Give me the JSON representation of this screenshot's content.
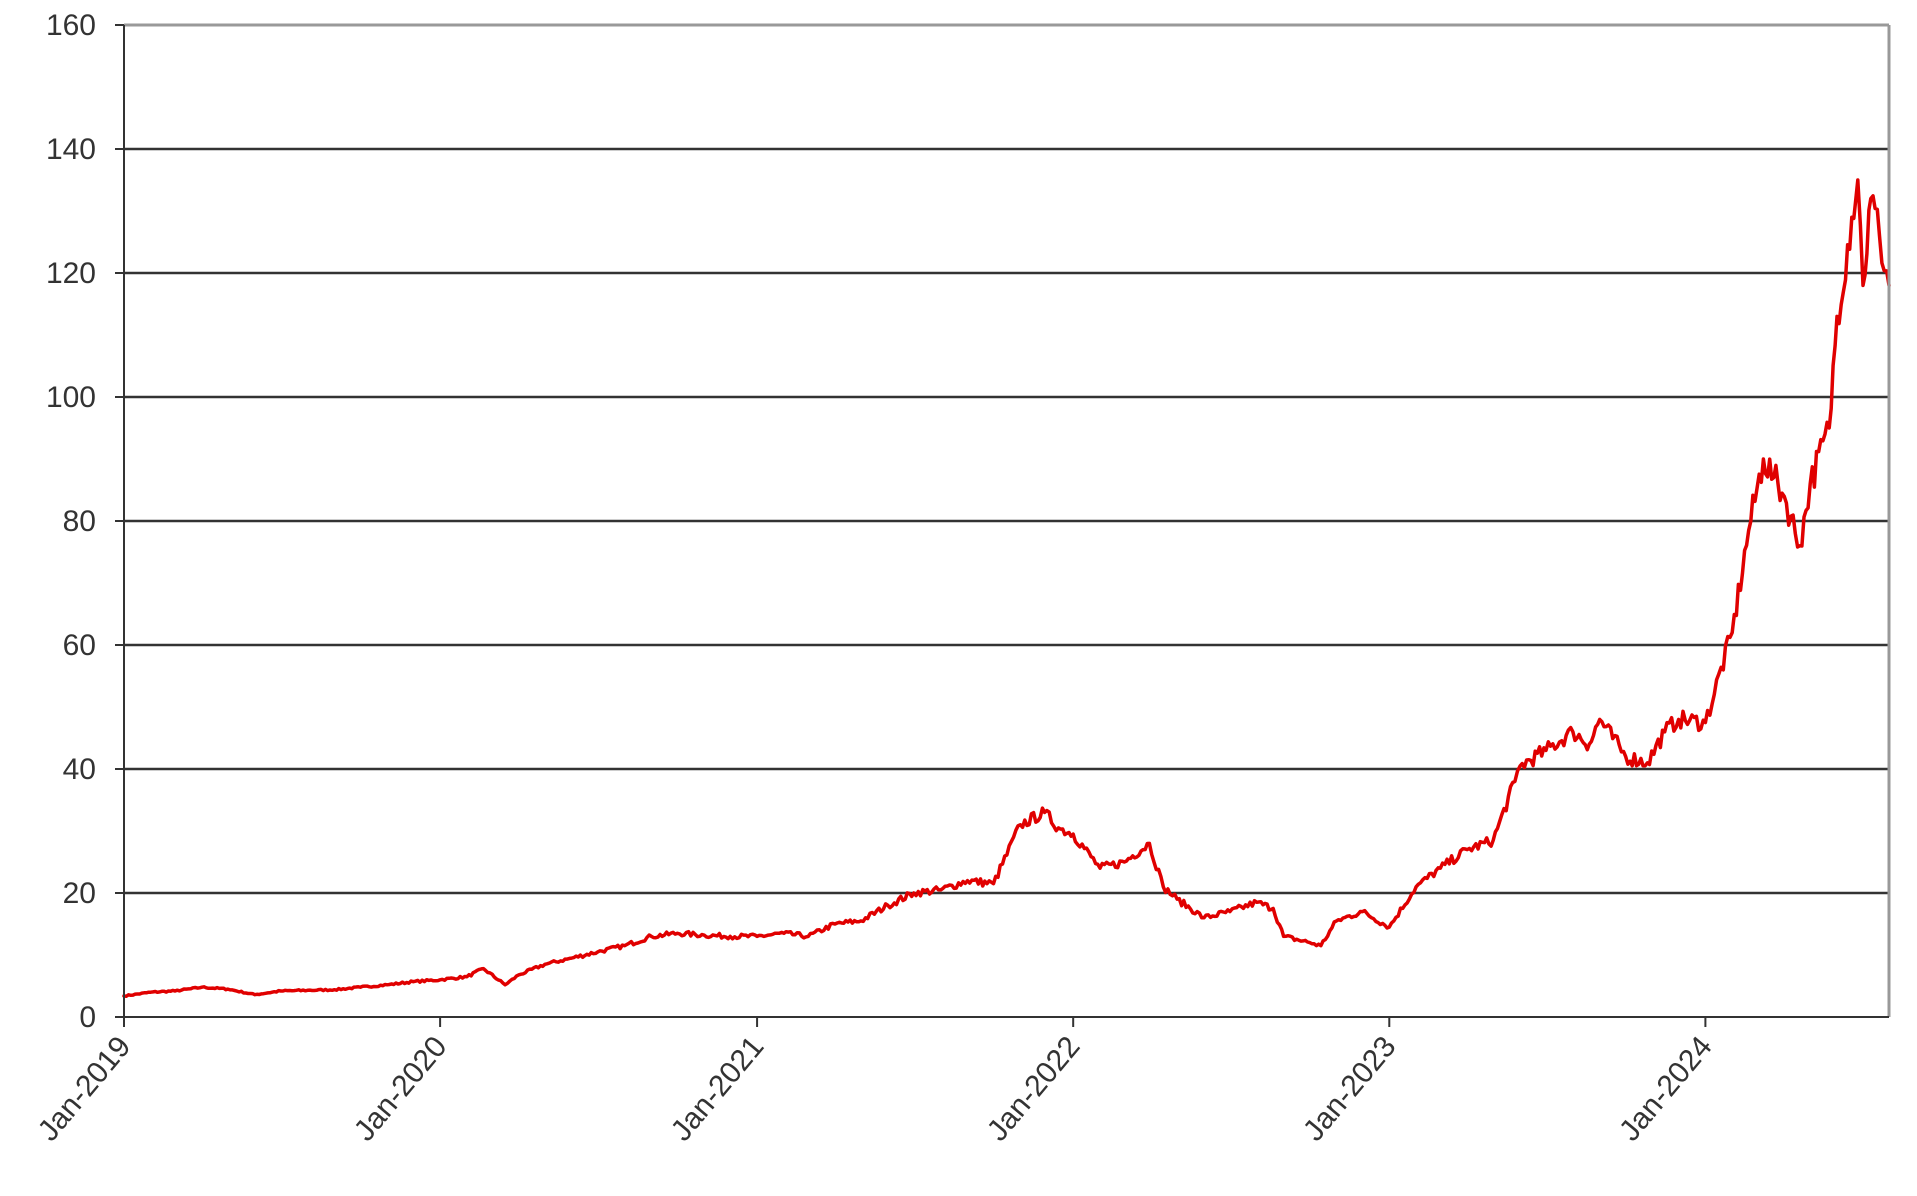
{
  "chart_data": {
    "type": "line",
    "title": "",
    "xlabel": "",
    "ylabel": "",
    "xlim": [
      "2019-01-01",
      "2024-07-31"
    ],
    "ylim": [
      0,
      160
    ],
    "yticks": [
      0,
      20,
      40,
      60,
      80,
      100,
      120,
      140,
      160
    ],
    "ytick_labels": [
      "0",
      "20",
      "40",
      "60",
      "80",
      "100",
      "120",
      "140",
      "160"
    ],
    "xticks": [
      "2019-01-01",
      "2020-01-01",
      "2021-01-01",
      "2022-01-01",
      "2023-01-01",
      "2024-01-01"
    ],
    "xtick_labels": [
      "Jan-2019",
      "Jan-2020",
      "Jan-2021",
      "Jan-2022",
      "Jan-2023",
      "Jan-2024"
    ],
    "grid": true,
    "line_color": "#e00000",
    "series": [
      {
        "x": [
          "2019-01-01",
          "2019-02-01",
          "2019-03-01",
          "2019-04-01",
          "2019-05-01",
          "2019-06-01",
          "2019-07-01",
          "2019-08-01",
          "2019-09-01",
          "2019-10-01",
          "2019-11-01",
          "2019-12-01",
          "2020-01-01",
          "2020-02-01",
          "2020-02-20",
          "2020-03-16",
          "2020-04-01",
          "2020-05-01",
          "2020-06-01",
          "2020-07-01",
          "2020-08-01",
          "2020-09-01",
          "2020-10-01",
          "2020-11-01",
          "2020-12-01",
          "2021-01-01",
          "2021-02-01",
          "2021-03-01",
          "2021-04-01",
          "2021-05-01",
          "2021-06-01",
          "2021-07-01",
          "2021-08-01",
          "2021-09-01",
          "2021-10-01",
          "2021-11-01",
          "2021-11-29",
          "2021-12-15",
          "2022-01-01",
          "2022-02-01",
          "2022-03-01",
          "2022-03-30",
          "2022-04-15",
          "2022-05-01",
          "2022-06-01",
          "2022-07-01",
          "2022-08-01",
          "2022-08-20",
          "2022-09-01",
          "2022-10-01",
          "2022-10-14",
          "2022-11-01",
          "2022-12-01",
          "2023-01-01",
          "2023-02-01",
          "2023-03-01",
          "2023-04-01",
          "2023-05-01",
          "2023-05-26",
          "2023-06-01",
          "2023-07-01",
          "2023-08-01",
          "2023-08-20",
          "2023-09-01",
          "2023-10-01",
          "2023-10-26",
          "2023-11-15",
          "2023-12-01",
          "2024-01-01",
          "2024-02-01",
          "2024-02-20",
          "2024-03-08",
          "2024-03-20",
          "2024-04-01",
          "2024-04-19",
          "2024-05-01",
          "2024-05-23",
          "2024-06-01",
          "2024-06-18",
          "2024-06-25",
          "2024-07-01",
          "2024-07-10",
          "2024-07-20",
          "2024-07-31"
        ],
        "y": [
          3.4,
          4.0,
          4.2,
          4.8,
          4.5,
          3.6,
          4.2,
          4.3,
          4.4,
          4.8,
          5.2,
          5.7,
          6.0,
          6.5,
          7.8,
          5.2,
          6.8,
          8.5,
          9.5,
          10.5,
          11.5,
          13.0,
          13.5,
          13.2,
          13.0,
          13.0,
          13.5,
          13.0,
          15.0,
          15.5,
          18.0,
          20.0,
          20.5,
          22.0,
          21.5,
          31.0,
          33.0,
          30.5,
          29.5,
          24.0,
          25.0,
          28.0,
          21.0,
          19.0,
          16.0,
          17.0,
          18.5,
          17.5,
          13.0,
          12.0,
          11.5,
          15.5,
          17.0,
          14.5,
          21.0,
          24.0,
          27.0,
          28.5,
          38.0,
          40.5,
          43.0,
          46.0,
          44.0,
          48.0,
          42.0,
          41.0,
          46.0,
          48.0,
          47.5,
          62.0,
          78.5,
          90.0,
          87.0,
          84.0,
          76.0,
          86.0,
          95.0,
          113.0,
          129.0,
          135.0,
          118.0,
          132.0,
          126.0,
          118.0
        ]
      }
    ]
  }
}
